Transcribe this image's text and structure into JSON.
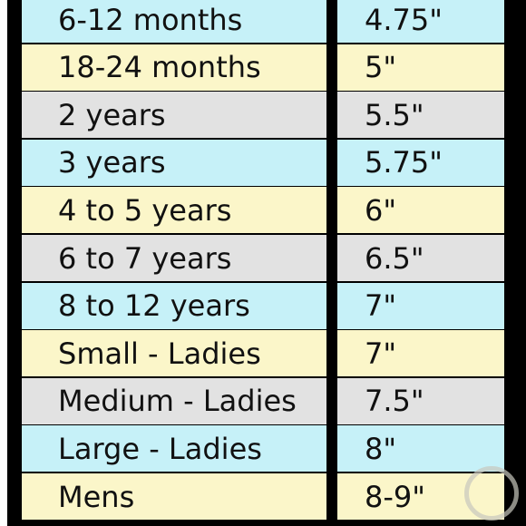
{
  "table": {
    "rows": [
      [
        "6-12 months",
        "4.75\""
      ],
      [
        "18-24 months",
        "5\""
      ],
      [
        "2 years",
        "5.5\""
      ],
      [
        "3 years",
        "5.75\""
      ],
      [
        "4 to 5 years",
        "6\""
      ],
      [
        "6 to 7 years",
        "6.5\""
      ],
      [
        "8 to 12 years",
        "7\""
      ],
      [
        "Small - Ladies",
        "7\""
      ],
      [
        "Medium - Ladies",
        "7.5\""
      ],
      [
        "Large - Ladies",
        "8\""
      ],
      [
        "Mens",
        "8-9\""
      ]
    ]
  }
}
